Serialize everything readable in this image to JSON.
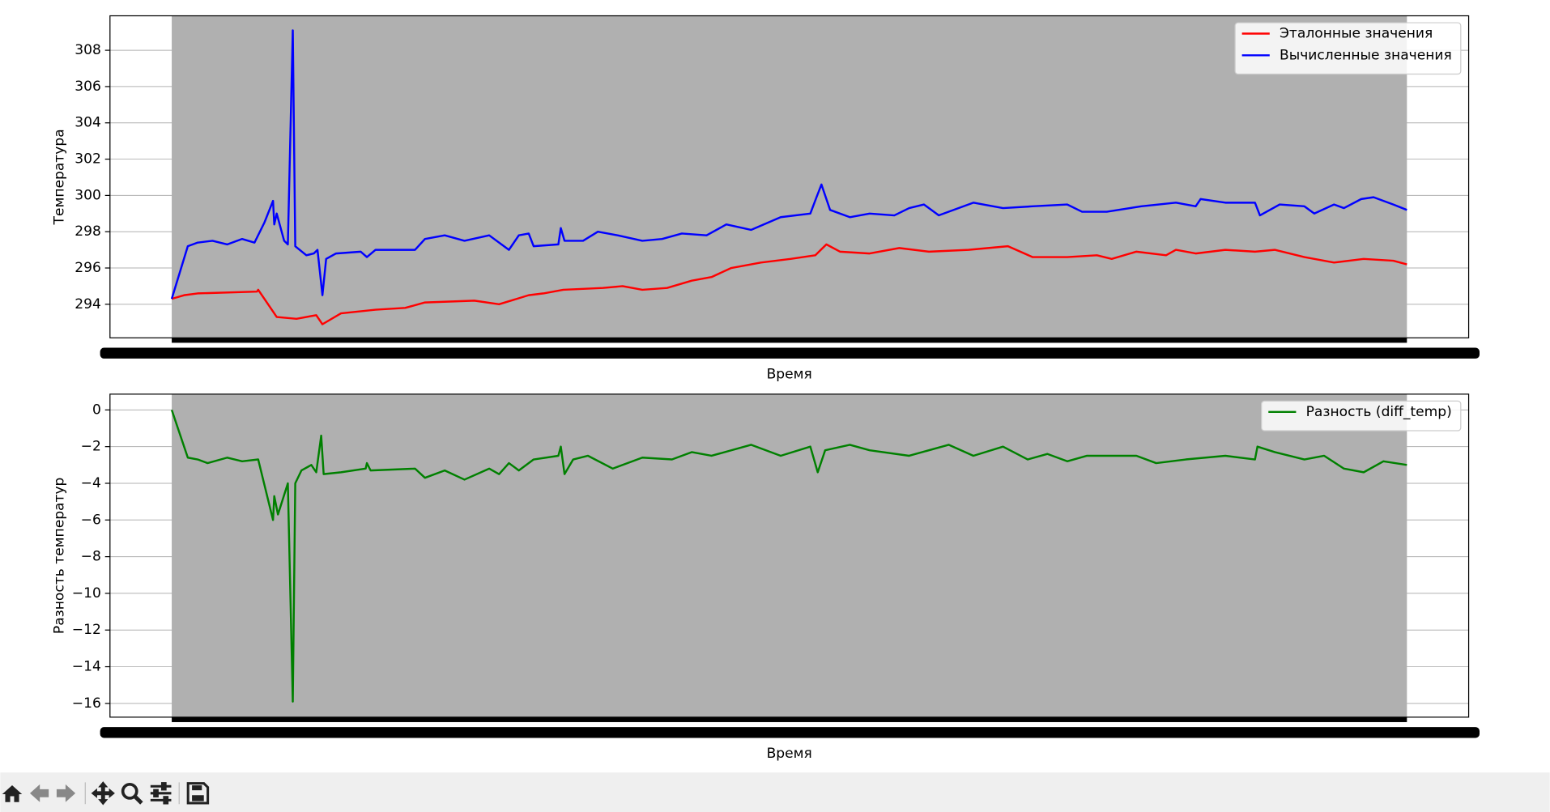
{
  "chart_data": [
    {
      "type": "line",
      "ylabel": "Температура",
      "xlabel": "Время",
      "xlim": [
        -50,
        1050
      ],
      "ylim": [
        292.15,
        309.9
      ],
      "yticks": [
        294,
        296,
        298,
        300,
        302,
        304,
        306,
        308
      ],
      "grid": true,
      "legend": "upper right",
      "series": [
        {
          "name": "Эталонные значения",
          "color": "#ff0000",
          "x": [
            0,
            10,
            21,
            69,
            70,
            85,
            101,
            117,
            122,
            137,
            165,
            189,
            205,
            245,
            265,
            289,
            301,
            317,
            349,
            365,
            381,
            401,
            421,
            437,
            453,
            477,
            501,
            521,
            530,
            541,
            565,
            589,
            613,
            645,
            677,
            697,
            725,
            749,
            761,
            781,
            805,
            813,
            829,
            853,
            877,
            893,
            917,
            941,
            965,
            989,
            1000
          ],
          "values": [
            294.3,
            294.5,
            294.6,
            294.7,
            294.8,
            293.3,
            293.2,
            293.4,
            292.9,
            293.5,
            293.7,
            293.8,
            294.1,
            294.2,
            294.0,
            294.5,
            294.6,
            294.8,
            294.9,
            295.0,
            294.8,
            294.9,
            295.3,
            295.5,
            296.0,
            296.3,
            296.5,
            296.7,
            297.3,
            296.9,
            296.8,
            297.1,
            296.9,
            297.0,
            297.2,
            296.6,
            296.6,
            296.7,
            296.5,
            296.9,
            296.7,
            297.0,
            296.8,
            297.0,
            296.9,
            297.0,
            296.6,
            296.3,
            296.5,
            296.4,
            296.2
          ]
        },
        {
          "name": "Вычисленные значения",
          "color": "#0000ff",
          "x": [
            0,
            13,
            21,
            33,
            45,
            57,
            67,
            75,
            82,
            83,
            85,
            91,
            94,
            98,
            100,
            109,
            115,
            118,
            122,
            125,
            133,
            153,
            158,
            165,
            197,
            205,
            221,
            237,
            257,
            273,
            281,
            289,
            293,
            313,
            315,
            318,
            333,
            345,
            361,
            381,
            397,
            413,
            433,
            449,
            469,
            493,
            517,
            522,
            526,
            533,
            549,
            565,
            585,
            597,
            609,
            621,
            649,
            673,
            697,
            725,
            737,
            757,
            785,
            813,
            829,
            833,
            853,
            877,
            881,
            897,
            917,
            925,
            941,
            949,
            963,
            973,
            989,
            1000
          ],
          "values": [
            294.3,
            297.2,
            297.4,
            297.5,
            297.3,
            297.6,
            297.4,
            298.5,
            299.7,
            298.4,
            299.0,
            297.5,
            297.3,
            309.1,
            297.2,
            296.7,
            296.8,
            297.0,
            294.5,
            296.5,
            296.8,
            296.9,
            296.6,
            297.0,
            297.0,
            297.6,
            297.8,
            297.5,
            297.8,
            297.0,
            297.8,
            297.9,
            297.2,
            297.3,
            298.2,
            297.5,
            297.5,
            298.0,
            297.8,
            297.5,
            297.6,
            297.9,
            297.8,
            298.4,
            298.1,
            298.8,
            299.0,
            299.9,
            300.6,
            299.2,
            298.8,
            299.0,
            298.9,
            299.3,
            299.5,
            298.9,
            299.6,
            299.3,
            299.4,
            299.5,
            299.1,
            299.1,
            299.4,
            299.6,
            299.4,
            299.8,
            299.6,
            299.6,
            298.9,
            299.5,
            299.4,
            299.0,
            299.5,
            299.3,
            299.8,
            299.9,
            299.5,
            299.2
          ]
        }
      ]
    },
    {
      "type": "line",
      "ylabel": "Разность температур",
      "xlabel": "Время",
      "xlim": [
        -50,
        1050
      ],
      "ylim": [
        -16.75,
        0.86
      ],
      "yticks": [
        {
          "value": -16,
          "label": "−16"
        },
        {
          "value": -14,
          "label": "−14"
        },
        {
          "value": -12,
          "label": "−12"
        },
        {
          "value": -10,
          "label": "−10"
        },
        {
          "value": -8,
          "label": "−8"
        },
        {
          "value": -6,
          "label": "−6"
        },
        {
          "value": -4,
          "label": "−4"
        },
        {
          "value": -2,
          "label": "−2"
        },
        0
      ],
      "grid": true,
      "legend": "upper right",
      "series": [
        {
          "name": "Разность (diff_temp)",
          "color": "#008000",
          "x": [
            0,
            13,
            21,
            29,
            45,
            57,
            70,
            82,
            83,
            86,
            94,
            98,
            100,
            105,
            113,
            117,
            121,
            123,
            137,
            157,
            158,
            161,
            197,
            205,
            221,
            237,
            257,
            265,
            273,
            281,
            293,
            313,
            315,
            318,
            325,
            337,
            357,
            381,
            405,
            421,
            437,
            469,
            493,
            517,
            523,
            529,
            549,
            565,
            597,
            629,
            649,
            673,
            693,
            709,
            725,
            741,
            781,
            797,
            821,
            853,
            877,
            879,
            893,
            917,
            933,
            949,
            965,
            981,
            1000
          ],
          "values": [
            0,
            -2.6,
            -2.7,
            -2.9,
            -2.6,
            -2.8,
            -2.7,
            -6.0,
            -4.7,
            -5.7,
            -4.0,
            -15.9,
            -4.0,
            -3.3,
            -3.0,
            -3.4,
            -1.4,
            -3.5,
            -3.4,
            -3.2,
            -2.9,
            -3.3,
            -3.2,
            -3.7,
            -3.3,
            -3.8,
            -3.2,
            -3.5,
            -2.9,
            -3.3,
            -2.7,
            -2.5,
            -2.0,
            -3.5,
            -2.7,
            -2.5,
            -3.2,
            -2.6,
            -2.7,
            -2.3,
            -2.5,
            -1.9,
            -2.5,
            -2.0,
            -3.4,
            -2.2,
            -1.9,
            -2.2,
            -2.5,
            -1.9,
            -2.5,
            -2.0,
            -2.7,
            -2.4,
            -2.8,
            -2.5,
            -2.5,
            -2.9,
            -2.7,
            -2.5,
            -2.7,
            -2.0,
            -2.3,
            -2.7,
            -2.5,
            -3.2,
            -3.4,
            -2.8,
            -3.0
          ]
        }
      ]
    }
  ]
}
